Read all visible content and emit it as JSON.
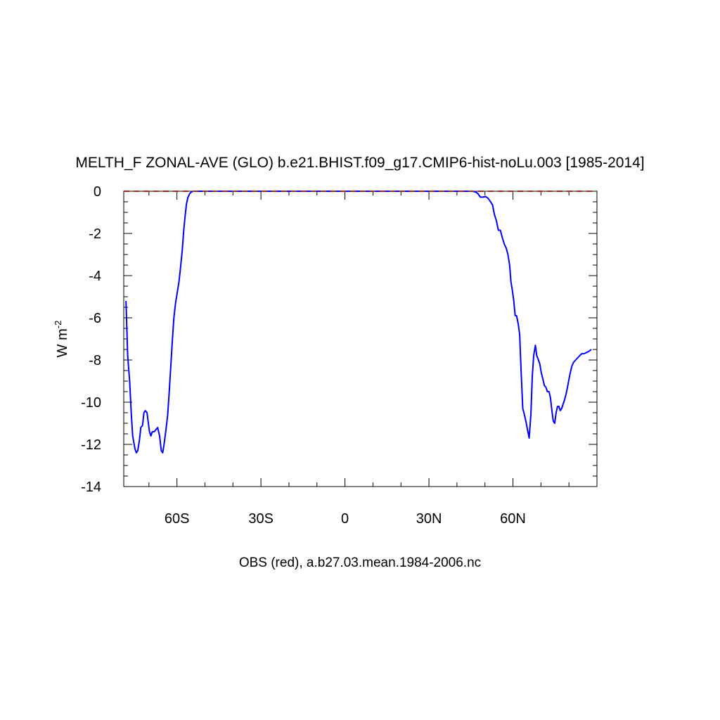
{
  "chart_data": {
    "type": "line",
    "title": "MELTH_F ZONAL-AVE (GLO) b.e21.BHIST.f09_g17.CMIP6-hist-noLu.003 [1985-2014]",
    "ylabel": "W m",
    "ylabel_superscript": "-2",
    "xlabel": "OBS (red), a.b27.03.mean.1984-2006.nc",
    "xlim": [
      -79,
      90
    ],
    "ylim": [
      -14,
      0
    ],
    "x_ticks": [
      {
        "value": -60,
        "label": "60S"
      },
      {
        "value": -30,
        "label": "30S"
      },
      {
        "value": 0,
        "label": "0"
      },
      {
        "value": 30,
        "label": "30N"
      },
      {
        "value": 60,
        "label": "60N"
      }
    ],
    "y_ticks": [
      {
        "value": 0,
        "label": "0"
      },
      {
        "value": -2,
        "label": "-2"
      },
      {
        "value": -4,
        "label": "-4"
      },
      {
        "value": -6,
        "label": "-6"
      },
      {
        "value": -8,
        "label": "-8"
      },
      {
        "value": -10,
        "label": "-10"
      },
      {
        "value": -12,
        "label": "-12"
      },
      {
        "value": -14,
        "label": "-14"
      }
    ],
    "grid": false,
    "series": [
      {
        "color": "#0000ff",
        "style": "solid",
        "points": [
          [
            -78.2,
            -5.2
          ],
          [
            -77.6,
            -7.8
          ],
          [
            -76.9,
            -9.0
          ],
          [
            -76.3,
            -10.6
          ],
          [
            -75.8,
            -11.6
          ],
          [
            -75.0,
            -12.2
          ],
          [
            -74.5,
            -12.4
          ],
          [
            -74.0,
            -12.3
          ],
          [
            -73.4,
            -11.8
          ],
          [
            -72.9,
            -11.2
          ],
          [
            -72.3,
            -11.1
          ],
          [
            -71.8,
            -10.5
          ],
          [
            -71.3,
            -10.4
          ],
          [
            -70.7,
            -10.5
          ],
          [
            -70.3,
            -10.9
          ],
          [
            -69.8,
            -11.4
          ],
          [
            -69.3,
            -11.6
          ],
          [
            -68.8,
            -11.4
          ],
          [
            -68.1,
            -11.4
          ],
          [
            -67.5,
            -11.3
          ],
          [
            -66.9,
            -11.2
          ],
          [
            -66.2,
            -11.6
          ],
          [
            -65.6,
            -12.3
          ],
          [
            -65.1,
            -12.4
          ],
          [
            -64.6,
            -12.0
          ],
          [
            -64.0,
            -11.4
          ],
          [
            -63.3,
            -10.6
          ],
          [
            -62.8,
            -9.6
          ],
          [
            -62.2,
            -8.3
          ],
          [
            -61.7,
            -7.2
          ],
          [
            -61.1,
            -6.0
          ],
          [
            -60.5,
            -5.3
          ],
          [
            -59.9,
            -4.8
          ],
          [
            -59.3,
            -4.3
          ],
          [
            -58.7,
            -3.6
          ],
          [
            -58.1,
            -2.8
          ],
          [
            -57.6,
            -1.9
          ],
          [
            -57.1,
            -1.2
          ],
          [
            -56.6,
            -0.6
          ],
          [
            -56.1,
            -0.3
          ],
          [
            -55.5,
            -0.12
          ],
          [
            -54.9,
            -0.04
          ],
          [
            -54.2,
            0
          ],
          [
            -53.5,
            0
          ],
          [
            -45,
            0
          ],
          [
            -20,
            0
          ],
          [
            0,
            0
          ],
          [
            20,
            0
          ],
          [
            40,
            0
          ],
          [
            45.5,
            0
          ],
          [
            46.5,
            -0.03
          ],
          [
            47.4,
            -0.1
          ],
          [
            48.4,
            -0.28
          ],
          [
            49.3,
            -0.28
          ],
          [
            50.2,
            -0.25
          ],
          [
            51.1,
            -0.33
          ],
          [
            51.9,
            -0.48
          ],
          [
            52.7,
            -0.65
          ],
          [
            53.4,
            -1.1
          ],
          [
            54.1,
            -1.4
          ],
          [
            54.8,
            -1.85
          ],
          [
            55.5,
            -1.85
          ],
          [
            56.2,
            -2.2
          ],
          [
            56.9,
            -2.5
          ],
          [
            57.6,
            -2.7
          ],
          [
            58.2,
            -3.0
          ],
          [
            58.8,
            -3.5
          ],
          [
            59.3,
            -4.3
          ],
          [
            59.8,
            -4.7
          ],
          [
            60.3,
            -5.2
          ],
          [
            60.8,
            -5.9
          ],
          [
            61.3,
            -5.9
          ],
          [
            61.9,
            -6.3
          ],
          [
            62.4,
            -6.8
          ],
          [
            62.9,
            -8.5
          ],
          [
            63.5,
            -10.3
          ],
          [
            64.1,
            -10.6
          ],
          [
            64.6,
            -10.9
          ],
          [
            65.2,
            -11.3
          ],
          [
            65.8,
            -11.7
          ],
          [
            66.4,
            -10.6
          ],
          [
            66.9,
            -8.8
          ],
          [
            67.4,
            -7.8
          ],
          [
            68.0,
            -7.3
          ],
          [
            68.5,
            -7.8
          ],
          [
            69.1,
            -8.0
          ],
          [
            69.6,
            -8.2
          ],
          [
            70.1,
            -8.6
          ],
          [
            70.7,
            -8.9
          ],
          [
            71.2,
            -9.2
          ],
          [
            71.8,
            -9.3
          ],
          [
            72.3,
            -9.5
          ],
          [
            72.9,
            -9.5
          ],
          [
            73.4,
            -9.8
          ],
          [
            73.9,
            -10.4
          ],
          [
            74.4,
            -10.9
          ],
          [
            74.9,
            -11.0
          ],
          [
            75.4,
            -10.5
          ],
          [
            75.9,
            -10.2
          ],
          [
            76.4,
            -10.2
          ],
          [
            76.9,
            -10.4
          ],
          [
            77.4,
            -10.3
          ],
          [
            77.9,
            -10.1
          ],
          [
            78.4,
            -9.9
          ],
          [
            79.0,
            -9.6
          ],
          [
            79.6,
            -9.2
          ],
          [
            80.3,
            -8.7
          ],
          [
            81.0,
            -8.3
          ],
          [
            81.7,
            -8.1
          ],
          [
            82.4,
            -8.0
          ],
          [
            83.1,
            -7.9
          ],
          [
            83.8,
            -7.8
          ],
          [
            84.6,
            -7.7
          ],
          [
            85.4,
            -7.7
          ],
          [
            86.2,
            -7.65
          ],
          [
            87.0,
            -7.6
          ],
          [
            88.0,
            -7.5
          ]
        ]
      },
      {
        "color": "#a52a2a",
        "style": "dashed",
        "points": [
          [
            -79,
            0
          ],
          [
            90,
            0
          ]
        ]
      }
    ]
  }
}
